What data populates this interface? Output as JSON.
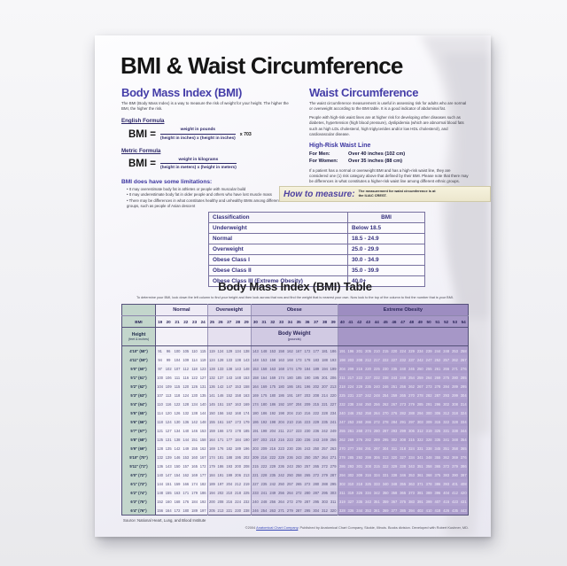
{
  "poster": {
    "title": "BMI & Waist Circumference",
    "bmi_section": {
      "heading": "Body Mass Index (BMI)",
      "intro": "The BMI (Body Mass Index) is a way to measure the risk of weight for your height. The higher the BMI, the higher the risk.",
      "english_formula": {
        "label": "English Formula",
        "lhs": "BMI =",
        "numerator": "weight in pounds",
        "denominator": "(height in inches) x (height in inches)",
        "multiplier": "x 703"
      },
      "metric_formula": {
        "label": "Metric Formula",
        "lhs": "BMI =",
        "numerator": "weight in kilograms",
        "denominator": "(height in meters) x (height in meters)"
      },
      "limitations_heading": "BMI does have some limitations:",
      "limitations": [
        "It may overestimate body fat in athletes or people with muscular build",
        "It may underestimate body fat in older people and others who have lost muscle mass",
        "There may be differences in what constitutes healthy and unhealthy BMIs among different ethnic groups, such as people of Asian descent"
      ]
    },
    "waist_section": {
      "heading": "Waist Circumference",
      "para1": "The waist circumference measurement is useful in assessing risk for adults who are normal or overweight according to the BMI table. It is a good indicator of abdominal fat.",
      "para2": "People with high-risk waist lines are at higher risk for developing other diseases such as diabetes, hypertension (high blood pressure), dyslipidemia (which are abnormal blood fats such as high LDL cholesterol, high triglycerides and/or low HDL cholesterol), and cardiovascular disease.",
      "high_risk": {
        "heading": "High-Risk Waist Line",
        "men_label": "For Men:",
        "men_value": "Over 40 inches (102 cm)",
        "women_label": "For Women:",
        "women_value": "Over 35 inches (88 cm)"
      },
      "para3": "If a patient has a normal or overweight BMI and has a high-risk waist line, they are considered one (1) risk category above that defined by their BMI. Please note that there may be differences in what constitutes a higher-risk waist line among different ethnic groups."
    },
    "how_to_measure": {
      "label": "How to measure:",
      "text": "The measurement for waist circumference is at the ILIAC CREST."
    },
    "classification_table": {
      "headers": [
        "Classification",
        "BMI"
      ],
      "rows": [
        [
          "Underweight",
          "Below 18.5"
        ],
        [
          "Normal",
          "18.5 - 24.9"
        ],
        [
          "Overweight",
          "25.0 - 29.9"
        ],
        [
          "Obese Class I",
          "30.0 - 34.9"
        ],
        [
          "Obese Class II",
          "35.0 - 39.9"
        ],
        [
          "Obese Class III (Extreme Obesity)",
          "40.0+"
        ]
      ]
    },
    "bmi_table": {
      "heading": "Body Mass Index (BMI) Table",
      "instructions": "To determine your BMI, look down the left column to find your height and then look across that row and find the weight that is nearest your own. Now look to the top of the column to find the number that is your BMI.",
      "corner_label": "BMI",
      "height_label": "Height",
      "height_sublabel": "(feet & inches)",
      "body_weight_label": "Body Weight",
      "body_weight_sublabel": "(pounds)",
      "categories": [
        {
          "name": "Normal",
          "span": 6,
          "cls": "normal"
        },
        {
          "name": "Overweight",
          "span": 5,
          "cls": "over"
        },
        {
          "name": "Obese",
          "span": 10,
          "cls": "obese"
        },
        {
          "name": "Extreme Obesity",
          "span": 15,
          "cls": "extreme"
        }
      ],
      "bmi_values": [
        19,
        20,
        21,
        22,
        23,
        24,
        25,
        26,
        27,
        28,
        29,
        30,
        31,
        32,
        33,
        34,
        35,
        36,
        37,
        38,
        39,
        40,
        41,
        42,
        43,
        44,
        45,
        46,
        47,
        48,
        49,
        50,
        51,
        52,
        53,
        54
      ],
      "rows": [
        {
          "height": "4'10\" (58\")",
          "weights": [
            91,
            96,
            100,
            105,
            110,
            115,
            119,
            124,
            129,
            134,
            138,
            143,
            148,
            153,
            158,
            162,
            167,
            172,
            177,
            181,
            186,
            191,
            196,
            201,
            205,
            210,
            215,
            220,
            224,
            229,
            234,
            239,
            244,
            248,
            253,
            258
          ]
        },
        {
          "height": "4'11\" (59\")",
          "weights": [
            94,
            99,
            104,
            109,
            114,
            119,
            124,
            128,
            133,
            138,
            143,
            148,
            153,
            158,
            163,
            168,
            173,
            178,
            183,
            188,
            193,
            198,
            203,
            208,
            212,
            217,
            222,
            227,
            232,
            237,
            242,
            247,
            252,
            257,
            262,
            267
          ]
        },
        {
          "height": "5'0\" (60\")",
          "weights": [
            97,
            102,
            107,
            112,
            118,
            123,
            128,
            133,
            138,
            143,
            148,
            153,
            158,
            163,
            168,
            174,
            179,
            184,
            189,
            194,
            199,
            204,
            209,
            215,
            220,
            225,
            230,
            235,
            240,
            245,
            250,
            255,
            261,
            266,
            271,
            276
          ]
        },
        {
          "height": "5'1\" (61\")",
          "weights": [
            100,
            106,
            111,
            116,
            122,
            127,
            132,
            137,
            143,
            148,
            153,
            158,
            164,
            169,
            174,
            180,
            185,
            190,
            195,
            201,
            206,
            211,
            217,
            222,
            227,
            232,
            238,
            243,
            248,
            254,
            259,
            264,
            269,
            275,
            280,
            285
          ]
        },
        {
          "height": "5'2\" (62\")",
          "weights": [
            104,
            109,
            115,
            120,
            126,
            131,
            136,
            142,
            147,
            153,
            158,
            164,
            169,
            175,
            180,
            186,
            191,
            196,
            202,
            207,
            213,
            218,
            224,
            229,
            235,
            240,
            246,
            251,
            256,
            262,
            267,
            273,
            278,
            284,
            289,
            295
          ]
        },
        {
          "height": "5'3\" (63\")",
          "weights": [
            107,
            113,
            118,
            124,
            130,
            135,
            141,
            146,
            152,
            158,
            163,
            169,
            175,
            180,
            186,
            191,
            197,
            203,
            208,
            214,
            220,
            225,
            231,
            237,
            242,
            248,
            254,
            259,
            265,
            270,
            278,
            282,
            287,
            293,
            299,
            304
          ]
        },
        {
          "height": "5'4\" (64\")",
          "weights": [
            110,
            116,
            122,
            128,
            134,
            140,
            145,
            151,
            157,
            163,
            169,
            174,
            180,
            186,
            192,
            197,
            204,
            209,
            215,
            221,
            227,
            232,
            238,
            244,
            250,
            256,
            262,
            267,
            273,
            279,
            285,
            291,
            296,
            302,
            308,
            314
          ]
        },
        {
          "height": "5'5\" (65\")",
          "weights": [
            114,
            120,
            126,
            132,
            138,
            144,
            150,
            156,
            162,
            168,
            174,
            180,
            186,
            192,
            198,
            204,
            210,
            216,
            222,
            228,
            234,
            240,
            246,
            252,
            258,
            264,
            270,
            276,
            282,
            288,
            294,
            300,
            306,
            312,
            318,
            324
          ]
        },
        {
          "height": "5'6\" (66\")",
          "weights": [
            118,
            124,
            130,
            136,
            142,
            148,
            155,
            161,
            167,
            173,
            179,
            186,
            192,
            198,
            204,
            210,
            216,
            223,
            229,
            235,
            241,
            247,
            253,
            260,
            266,
            272,
            278,
            284,
            291,
            297,
            303,
            309,
            315,
            322,
            328,
            334
          ]
        },
        {
          "height": "5'7\" (67\")",
          "weights": [
            121,
            127,
            134,
            140,
            146,
            153,
            159,
            166,
            172,
            178,
            185,
            191,
            198,
            204,
            211,
            217,
            223,
            230,
            236,
            242,
            249,
            255,
            261,
            268,
            274,
            280,
            287,
            293,
            299,
            306,
            312,
            319,
            325,
            331,
            338,
            344
          ]
        },
        {
          "height": "5'8\" (68\")",
          "weights": [
            125,
            131,
            138,
            144,
            151,
            158,
            164,
            171,
            177,
            184,
            190,
            197,
            203,
            210,
            216,
            223,
            230,
            236,
            243,
            249,
            256,
            262,
            269,
            276,
            282,
            289,
            295,
            302,
            308,
            315,
            322,
            328,
            335,
            341,
            348,
            354
          ]
        },
        {
          "height": "5'9\" (69\")",
          "weights": [
            128,
            135,
            142,
            149,
            155,
            162,
            169,
            176,
            182,
            189,
            196,
            203,
            209,
            216,
            223,
            230,
            236,
            243,
            250,
            257,
            263,
            270,
            277,
            284,
            291,
            297,
            304,
            311,
            318,
            324,
            331,
            338,
            345,
            351,
            358,
            365
          ]
        },
        {
          "height": "5'10\" (70\")",
          "weights": [
            132,
            139,
            146,
            153,
            160,
            167,
            174,
            181,
            188,
            195,
            202,
            209,
            216,
            222,
            229,
            236,
            243,
            250,
            257,
            264,
            271,
            278,
            285,
            292,
            299,
            306,
            313,
            320,
            327,
            334,
            341,
            348,
            355,
            362,
            369,
            376
          ]
        },
        {
          "height": "5'11\" (71\")",
          "weights": [
            136,
            143,
            150,
            157,
            165,
            172,
            179,
            186,
            193,
            200,
            208,
            215,
            222,
            229,
            236,
            243,
            250,
            257,
            265,
            272,
            279,
            286,
            293,
            301,
            308,
            315,
            322,
            329,
            338,
            343,
            351,
            358,
            365,
            372,
            379,
            386
          ]
        },
        {
          "height": "6'0\" (72\")",
          "weights": [
            140,
            147,
            154,
            162,
            169,
            177,
            184,
            191,
            199,
            206,
            213,
            221,
            228,
            235,
            242,
            250,
            258,
            265,
            272,
            279,
            287,
            294,
            302,
            309,
            316,
            324,
            331,
            338,
            346,
            353,
            361,
            368,
            375,
            383,
            390,
            397
          ]
        },
        {
          "height": "6'1\" (73\")",
          "weights": [
            144,
            151,
            159,
            166,
            174,
            182,
            189,
            197,
            204,
            212,
            219,
            227,
            235,
            242,
            250,
            257,
            265,
            272,
            280,
            288,
            295,
            302,
            310,
            318,
            325,
            333,
            340,
            348,
            355,
            363,
            371,
            378,
            386,
            393,
            401,
            408
          ]
        },
        {
          "height": "6'2\" (74\")",
          "weights": [
            148,
            155,
            163,
            171,
            179,
            186,
            194,
            202,
            210,
            218,
            225,
            233,
            241,
            249,
            256,
            264,
            272,
            280,
            287,
            295,
            303,
            311,
            319,
            326,
            334,
            342,
            350,
            358,
            365,
            373,
            381,
            389,
            396,
            404,
            412,
            420
          ]
        },
        {
          "height": "6'3\" (75\")",
          "weights": [
            152,
            160,
            168,
            176,
            184,
            192,
            200,
            208,
            216,
            224,
            232,
            240,
            248,
            256,
            264,
            272,
            279,
            287,
            295,
            303,
            311,
            319,
            327,
            335,
            343,
            351,
            359,
            367,
            375,
            383,
            391,
            399,
            407,
            415,
            423,
            431
          ]
        },
        {
          "height": "6'4\" (76\")",
          "weights": [
            156,
            164,
            172,
            180,
            189,
            197,
            205,
            213,
            221,
            230,
            238,
            246,
            254,
            263,
            271,
            279,
            287,
            295,
            304,
            312,
            320,
            328,
            336,
            344,
            353,
            361,
            369,
            377,
            385,
            394,
            402,
            410,
            418,
            426,
            435,
            443
          ]
        }
      ]
    },
    "source": "Source: National Heart, Lung, and Blood Institute",
    "copyright_prefix": "©2004 ",
    "copyright_link": "Anatomical Chart Company",
    "copyright_rest": ". Published by Anatomical Chart Company, Skokie, Illinois. Books division. Developed with Robert Kushner, MD."
  }
}
